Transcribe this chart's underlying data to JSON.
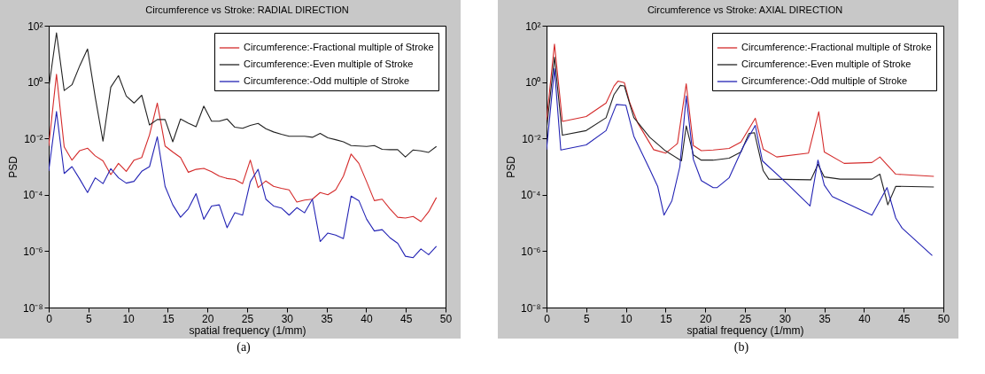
{
  "chart_data": [
    {
      "type": "line",
      "title": "Circumference vs Stroke: RADIAL DIRECTION",
      "xlabel": "spatial frequency (1/mm)",
      "ylabel": "PSD",
      "annotations": [
        "(a)"
      ],
      "legend": "top right",
      "log": true,
      "xlim": [
        0,
        50
      ],
      "xticks": [
        0,
        5,
        10,
        15,
        20,
        25,
        30,
        35,
        40,
        45,
        50
      ],
      "ylim": [
        1e-08,
        100
      ],
      "yticks": [
        {
          "value": 1e-08,
          "label": "10⁻⁸"
        },
        {
          "value": 1e-06,
          "label": "10⁻⁶"
        },
        {
          "value": 0.0001,
          "label": "10⁻⁴"
        },
        {
          "value": 0.01,
          "label": "10⁻²"
        },
        {
          "value": 1,
          "label": "10⁰"
        },
        {
          "value": 100,
          "label": "10²"
        }
      ],
      "x": [
        0,
        0.98,
        1.95,
        2.93,
        3.91,
        4.89,
        5.86,
        6.84,
        7.82,
        8.79,
        9.77,
        10.75,
        11.72,
        12.7,
        13.68,
        14.66,
        15.63,
        16.61,
        17.59,
        18.56,
        19.54,
        20.52,
        21.49,
        22.47,
        23.45,
        24.43,
        25.4,
        26.38,
        27.36,
        28.33,
        29.31,
        30.29,
        31.26,
        32.24,
        33.22,
        34.2,
        35.17,
        36.15,
        37.13,
        38.1,
        39.08,
        40.06,
        41.03,
        42.01,
        42.99,
        43.97,
        44.94,
        45.92,
        46.9,
        47.87,
        48.85
      ],
      "series": [
        {
          "name": "Circumference:-Fractional multiple of Stroke",
          "color": "#d42a2a",
          "values": [
            0.0054,
            1.9,
            0.005,
            0.0017,
            0.0037,
            0.0045,
            0.0024,
            0.0016,
            0.00052,
            0.0013,
            0.00068,
            0.0017,
            0.0021,
            0.0135,
            0.18,
            0.0054,
            0.0033,
            0.0021,
            0.00063,
            0.0008,
            0.00087,
            0.00066,
            0.00046,
            0.00038,
            0.00035,
            0.00025,
            0.0017,
            0.00018,
            0.00031,
            0.0002,
            0.00017,
            0.00015,
            5.5e-05,
            6.5e-05,
            7e-05,
            0.00012,
            0.0001,
            0.00015,
            0.00046,
            0.0028,
            0.0013,
            0.00029,
            6.2e-05,
            7e-05,
            3.2e-05,
            1.6e-05,
            1.5e-05,
            1.7e-05,
            1.12e-05,
            2.5e-05,
            8e-05
          ]
        },
        {
          "name": "Circumference:-Even multiple of Stroke",
          "color": "#222222",
          "values": [
            0.6,
            56,
            0.5,
            0.8,
            3.8,
            15,
            0.29,
            0.008,
            0.66,
            1.7,
            0.32,
            0.18,
            0.34,
            0.03,
            0.047,
            0.047,
            0.0076,
            0.049,
            0.035,
            0.026,
            0.14,
            0.041,
            0.041,
            0.049,
            0.025,
            0.023,
            0.029,
            0.034,
            0.022,
            0.017,
            0.014,
            0.012,
            0.012,
            0.012,
            0.011,
            0.015,
            0.0105,
            0.009,
            0.0076,
            0.0056,
            0.0054,
            0.0052,
            0.0056,
            0.0041,
            0.004,
            0.004,
            0.0022,
            0.0039,
            0.0036,
            0.0032,
            0.0052
          ]
        },
        {
          "name": "Circumference:-Odd multiple of Stroke",
          "color": "#2323b4",
          "values": [
            0.0007,
            0.09,
            0.00057,
            0.001,
            0.00036,
            0.00012,
            0.0004,
            0.00025,
            0.00085,
            0.0004,
            0.00026,
            0.0003,
            0.00068,
            0.001,
            0.0115,
            0.0002,
            4.4e-05,
            1.6e-05,
            3.2e-05,
            0.00011,
            1.36e-05,
            4e-05,
            4.4e-05,
            6.8e-06,
            2.3e-05,
            1.9e-05,
            0.00029,
            0.0008,
            7e-05,
            4e-05,
            3.4e-05,
            1.9e-05,
            3.5e-05,
            2.3e-05,
            7e-05,
            2.2e-06,
            4.4e-06,
            3.7e-06,
            2.8e-06,
            9e-05,
            6.2e-05,
            1.36e-05,
            5.2e-06,
            5.8e-06,
            3e-06,
            1.9e-06,
            6.6e-07,
            5.9e-07,
            1.2e-06,
            7.5e-07,
            1.5e-06
          ]
        }
      ]
    },
    {
      "type": "line",
      "title": "Circumference vs Stroke: AXIAL DIRECTION",
      "xlabel": "spatial frequency (1/mm)",
      "ylabel": "PSD",
      "annotations": [
        "(b)"
      ],
      "legend": "top right",
      "log": true,
      "xlim": [
        0,
        50
      ],
      "xticks": [
        0,
        5,
        10,
        15,
        20,
        25,
        30,
        35,
        40,
        45,
        50
      ],
      "ylim": [
        1e-08,
        100
      ],
      "yticks": [
        {
          "value": 1e-08,
          "label": "10⁻⁸"
        },
        {
          "value": 1e-06,
          "label": "10⁻⁶"
        },
        {
          "value": 0.0001,
          "label": "10⁻⁴"
        },
        {
          "value": 0.01,
          "label": "10⁻²"
        },
        {
          "value": 1,
          "label": "10⁰"
        },
        {
          "value": 100,
          "label": "10²"
        }
      ],
      "series": [
        {
          "name": "Circumference:-Fractional multiple of Stroke",
          "color": "#d42a2a",
          "x": [
            0,
            1,
            2,
            5,
            7.5,
            8.5,
            9,
            9.8,
            10.5,
            11.5,
            13.5,
            15,
            16.5,
            17.6,
            18.5,
            19.5,
            21,
            23,
            24.5,
            26.3,
            27.3,
            29,
            33,
            34.3,
            35,
            37.5,
            41,
            42,
            44,
            48.8
          ],
          "values": [
            0.044,
            22,
            0.04,
            0.06,
            0.18,
            0.72,
            1.08,
            0.96,
            0.18,
            0.035,
            0.004,
            0.003,
            0.0066,
            0.87,
            0.0056,
            0.0037,
            0.0039,
            0.0044,
            0.0075,
            0.052,
            0.0042,
            0.0022,
            0.003,
            0.089,
            0.0033,
            0.0013,
            0.0014,
            0.0022,
            0.00054,
            0.00045
          ]
        },
        {
          "name": "Circumference:-Even multiple of Stroke",
          "color": "#222222",
          "x": [
            0,
            1,
            2,
            5,
            7.5,
            8.5,
            9.3,
            9.8,
            11,
            13,
            15,
            17,
            17.6,
            18.5,
            19.5,
            21,
            23,
            24.5,
            25.5,
            26.2,
            27.3,
            28,
            33.3,
            34.2,
            35,
            37,
            41,
            42,
            43,
            44,
            48.8
          ],
          "values": [
            0.02,
            7.6,
            0.013,
            0.019,
            0.054,
            0.36,
            0.76,
            0.73,
            0.055,
            0.011,
            0.0036,
            0.0016,
            0.028,
            0.0026,
            0.0017,
            0.0017,
            0.002,
            0.0033,
            0.015,
            0.016,
            0.00072,
            0.00036,
            0.00034,
            0.0012,
            0.00043,
            0.00036,
            0.00036,
            0.00054,
            4.4e-05,
            0.0002,
            0.00019
          ]
        },
        {
          "name": "Circumference:-Odd multiple of Stroke",
          "color": "#2323b4",
          "x": [
            0,
            1,
            1.8,
            5,
            7.5,
            8.8,
            10,
            11,
            13,
            14,
            14.8,
            15.8,
            16.8,
            17.6,
            18.5,
            19.5,
            21,
            21.5,
            23,
            24.8,
            26.3,
            27.2,
            30.3,
            33.2,
            34.2,
            35,
            36,
            41,
            42.9,
            44,
            44.8,
            48.6
          ],
          "values": [
            0.004,
            3,
            0.0039,
            0.0059,
            0.019,
            0.16,
            0.15,
            0.012,
            0.0008,
            0.0002,
            1.9e-05,
            6.2e-05,
            0.001,
            0.32,
            0.0018,
            0.00032,
            0.00018,
            0.00018,
            0.0004,
            0.0052,
            0.029,
            0.0016,
            0.00025,
            4e-05,
            0.0017,
            0.00022,
            8.7e-05,
            1.9e-05,
            0.00018,
            1.5e-05,
            6.6e-06,
            7e-07
          ]
        }
      ]
    }
  ]
}
